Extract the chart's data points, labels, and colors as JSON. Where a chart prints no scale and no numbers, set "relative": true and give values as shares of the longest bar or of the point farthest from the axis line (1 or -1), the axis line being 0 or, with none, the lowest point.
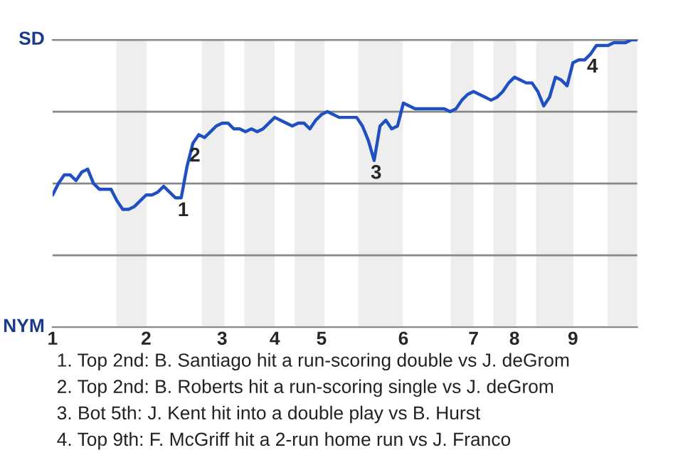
{
  "chart_data": {
    "type": "line",
    "relative": true,
    "categories": [
      "1",
      null,
      null,
      null,
      null,
      null,
      null,
      null,
      null,
      null,
      null,
      null,
      null,
      null,
      null,
      null,
      "2",
      null,
      null,
      null,
      null,
      null,
      null,
      null,
      null,
      null,
      null,
      null,
      null,
      "3",
      null,
      null,
      null,
      null,
      null,
      null,
      null,
      null,
      "4",
      null,
      null,
      null,
      null,
      null,
      null,
      null,
      "5",
      null,
      null,
      null,
      null,
      null,
      null,
      null,
      null,
      null,
      null,
      null,
      null,
      null,
      "6",
      null,
      null,
      null,
      null,
      null,
      null,
      null,
      null,
      null,
      null,
      null,
      "7",
      null,
      null,
      null,
      null,
      null,
      null,
      "8",
      null,
      null,
      null,
      null,
      null,
      null,
      null,
      null,
      null,
      "9",
      null,
      null,
      null,
      null,
      null,
      null,
      null,
      null,
      null,
      null,
      null
    ],
    "series": [
      {
        "color": "#1f4fc1",
        "values": [
          0.46,
          0.5,
          0.53,
          0.53,
          0.51,
          0.54,
          0.55,
          0.5,
          0.48,
          0.48,
          0.48,
          0.44,
          0.41,
          0.41,
          0.42,
          0.44,
          0.46,
          0.46,
          0.47,
          0.49,
          0.47,
          0.45,
          0.45,
          0.56,
          0.64,
          0.67,
          0.66,
          0.68,
          0.7,
          0.71,
          0.71,
          0.69,
          0.69,
          0.68,
          0.69,
          0.68,
          0.69,
          0.71,
          0.73,
          0.72,
          0.71,
          0.7,
          0.71,
          0.71,
          0.69,
          0.72,
          0.74,
          0.75,
          0.74,
          0.73,
          0.73,
          0.73,
          0.73,
          0.7,
          0.65,
          0.58,
          0.7,
          0.72,
          0.69,
          0.7,
          0.78,
          0.77,
          0.76,
          0.76,
          0.76,
          0.76,
          0.76,
          0.76,
          0.75,
          0.76,
          0.79,
          0.81,
          0.82,
          0.81,
          0.8,
          0.79,
          0.8,
          0.82,
          0.85,
          0.87,
          0.86,
          0.85,
          0.85,
          0.82,
          0.77,
          0.8,
          0.87,
          0.86,
          0.84,
          0.92,
          0.93,
          0.93,
          0.95,
          0.98,
          0.98,
          0.98,
          0.99,
          0.99,
          0.99,
          1.0,
          1.0
        ]
      }
    ],
    "ref_lines": [
      {
        "axis": "y",
        "value": 0.25,
        "color": "#888888"
      },
      {
        "axis": "y",
        "value": 0.5,
        "color": "#888888"
      },
      {
        "axis": "y",
        "value": 0.75,
        "color": "#888888"
      },
      {
        "axis": "y",
        "value": 1.0,
        "color": "#888888"
      }
    ],
    "annotations": [
      "SD",
      "NYM",
      {
        "text": "1",
        "y": 0.45
      },
      {
        "text": "2",
        "y": 0.64
      },
      {
        "text": "3",
        "y": 0.58
      },
      {
        "text": "4",
        "y": 0.95
      },
      "1. Top 2nd: B. Santiago hit a run-scoring double vs J. deGrom",
      "2. Top 2nd: B. Roberts hit a run-scoring single vs J. deGrom",
      "3. Bot 5th: J. Kent hit into a double play vs B. Hurst",
      "4. Top 9th: F. McGriff hit a 2-run home run vs J. Franco"
    ],
    "marker": "none",
    "line_style": "solid"
  }
}
